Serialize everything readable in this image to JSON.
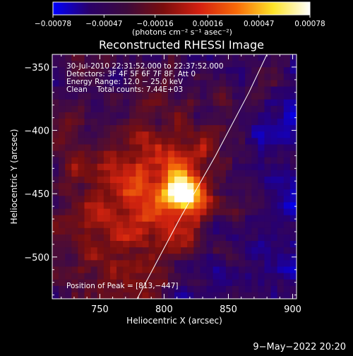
{
  "chart_data": {
    "type": "heatmap",
    "title": "Reconstructed RHESSI Image",
    "xlabel": "Heliocentric X (arcsec)",
    "ylabel": "Heliocentric Y (arcsec)",
    "xlim": [
      713,
      903
    ],
    "ylim": [
      -533,
      -340
    ],
    "xticks": [
      750,
      800,
      850,
      900
    ],
    "yticks": [
      -350,
      -400,
      -450,
      -500
    ],
    "x_tick_labels": [
      "750",
      "800",
      "850",
      "900"
    ],
    "y_tick_labels": [
      "−350",
      "−400",
      "−450",
      "−500"
    ],
    "colorbar": {
      "min": -0.00078,
      "max": 0.00078,
      "ticks": [
        -0.00078,
        -0.00047,
        -0.00016,
        0.00016,
        0.00047,
        0.00078
      ],
      "tick_labels": [
        "−0.00078",
        "−0.00047",
        "−0.00016",
        "0.00016",
        "0.00047",
        "0.00078"
      ],
      "unit_label": "(photons cm⁻² s⁻¹ asec⁻²)",
      "colors": [
        "#0000ff",
        "#2a0068",
        "#3c0a3c",
        "#7a0d0d",
        "#d42010",
        "#f86a08",
        "#fde428",
        "#ffffff"
      ]
    },
    "peak": {
      "x": 813,
      "y": -447
    },
    "limb_curve": [
      {
        "x": 779,
        "y": -533
      },
      {
        "x": 812,
        "y": -470
      },
      {
        "x": 840,
        "y": -420
      },
      {
        "x": 866,
        "y": -370
      },
      {
        "x": 880,
        "y": -340
      }
    ],
    "annotations": [
      "30-Jul-2010 22:31:52.000 to 22:37:52.000",
      "Detectors: 3F 4F 5F 6F 7F 8F, Att 0",
      "Energy Range: 12.0 − 25.0 keV",
      "Clean    Total counts: 7.44E+03"
    ],
    "peak_label": "Position of Peak = [813,−447]",
    "timestamp": "9−May−2022 20:20",
    "grid": false
  }
}
